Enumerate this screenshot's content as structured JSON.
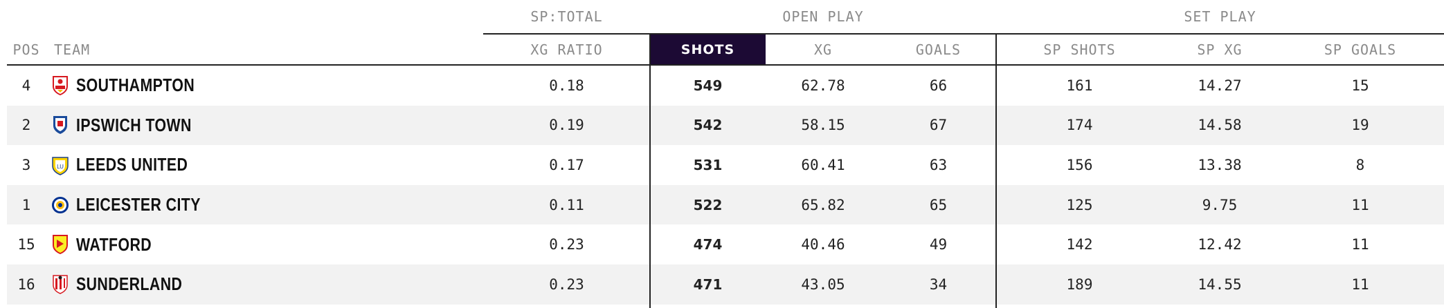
{
  "groups": {
    "sp_total": "SP:TOTAL",
    "open_play": "OPEN PLAY",
    "set_play": "SET PLAY"
  },
  "columns": {
    "pos": "POS",
    "team": "TEAM",
    "xg_ratio": "XG RATIO",
    "shots": "SHOTS",
    "xg": "XG",
    "goals": "GOALS",
    "sp_shots": "SP SHOTS",
    "sp_xg": "SP XG",
    "sp_goals": "SP GOALS"
  },
  "colors": {
    "highlight": "#1c0a34",
    "row_alt": "#f2f2f2"
  },
  "rows": [
    {
      "pos": "4",
      "team": "SOUTHAMPTON",
      "crest": "southampton-crest-icon",
      "xg_ratio": "0.18",
      "shots": "549",
      "xg": "62.78",
      "goals": "66",
      "sp_shots": "161",
      "sp_xg": "14.27",
      "sp_goals": "15"
    },
    {
      "pos": "2",
      "team": "IPSWICH TOWN",
      "crest": "ipswich-crest-icon",
      "xg_ratio": "0.19",
      "shots": "542",
      "xg": "58.15",
      "goals": "67",
      "sp_shots": "174",
      "sp_xg": "14.58",
      "sp_goals": "19"
    },
    {
      "pos": "3",
      "team": "LEEDS UNITED",
      "crest": "leeds-crest-icon",
      "xg_ratio": "0.17",
      "shots": "531",
      "xg": "60.41",
      "goals": "63",
      "sp_shots": "156",
      "sp_xg": "13.38",
      "sp_goals": "8"
    },
    {
      "pos": "1",
      "team": "LEICESTER CITY",
      "crest": "leicester-crest-icon",
      "xg_ratio": "0.11",
      "shots": "522",
      "xg": "65.82",
      "goals": "65",
      "sp_shots": "125",
      "sp_xg": "9.75",
      "sp_goals": "11"
    },
    {
      "pos": "15",
      "team": "WATFORD",
      "crest": "watford-crest-icon",
      "xg_ratio": "0.23",
      "shots": "474",
      "xg": "40.46",
      "goals": "49",
      "sp_shots": "142",
      "sp_xg": "12.42",
      "sp_goals": "11"
    },
    {
      "pos": "16",
      "team": "SUNDERLAND",
      "crest": "sunderland-crest-icon",
      "xg_ratio": "0.23",
      "shots": "471",
      "xg": "43.05",
      "goals": "34",
      "sp_shots": "189",
      "sp_xg": "14.55",
      "sp_goals": "11"
    }
  ]
}
